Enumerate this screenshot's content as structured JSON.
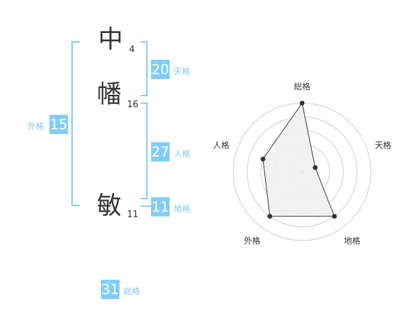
{
  "name": {
    "characters": [
      {
        "char": "中",
        "strokes": "4"
      },
      {
        "char": "幡",
        "strokes": "16"
      },
      {
        "char": "敏",
        "strokes": "11"
      }
    ]
  },
  "scores": {
    "tenkaku": {
      "label": "天格",
      "value": "20"
    },
    "jinkaku": {
      "label": "人格",
      "value": "27"
    },
    "chikaku": {
      "label": "地格",
      "value": "11"
    },
    "gaikaku": {
      "label": "外格",
      "value": "15"
    },
    "soukaku": {
      "label": "総格",
      "value": "31"
    }
  },
  "colors": {
    "accent": "#80cdfa",
    "bracket": "#7fcdf7",
    "label": "#80c8f0",
    "radar_fill": "#f0f0f0",
    "radar_line": "#333333"
  },
  "chart_data": {
    "type": "radar",
    "categories": [
      "総格",
      "天格",
      "地格",
      "外格",
      "人格"
    ],
    "values": [
      5,
      1,
      4,
      4,
      3
    ],
    "rlim": [
      0,
      5
    ],
    "rings": 5
  }
}
